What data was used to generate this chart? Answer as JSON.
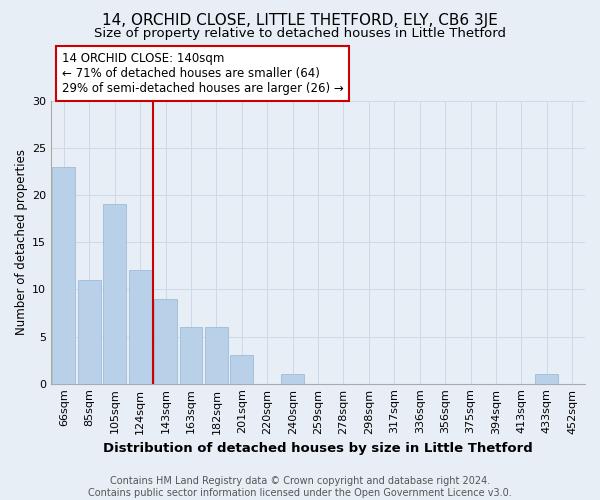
{
  "title": "14, ORCHID CLOSE, LITTLE THETFORD, ELY, CB6 3JE",
  "subtitle": "Size of property relative to detached houses in Little Thetford",
  "xlabel": "Distribution of detached houses by size in Little Thetford",
  "ylabel": "Number of detached properties",
  "bin_labels": [
    "66sqm",
    "85sqm",
    "105sqm",
    "124sqm",
    "143sqm",
    "163sqm",
    "182sqm",
    "201sqm",
    "220sqm",
    "240sqm",
    "259sqm",
    "278sqm",
    "298sqm",
    "317sqm",
    "336sqm",
    "356sqm",
    "375sqm",
    "394sqm",
    "413sqm",
    "433sqm",
    "452sqm"
  ],
  "bar_values": [
    23,
    11,
    19,
    12,
    9,
    6,
    6,
    3,
    0,
    1,
    0,
    0,
    0,
    0,
    0,
    0,
    0,
    0,
    0,
    1,
    0
  ],
  "bar_color": "#b8d0e8",
  "bar_edge_color": "#a0bcd8",
  "reference_line_index": 4,
  "ylim": [
    0,
    30
  ],
  "yticks": [
    0,
    5,
    10,
    15,
    20,
    25,
    30
  ],
  "annotation_title": "14 ORCHID CLOSE: 140sqm",
  "annotation_line1": "← 71% of detached houses are smaller (64)",
  "annotation_line2": "29% of semi-detached houses are larger (26) →",
  "footnote_line1": "Contains HM Land Registry data © Crown copyright and database right 2024.",
  "footnote_line2": "Contains public sector information licensed under the Open Government Licence v3.0.",
  "title_fontsize": 11,
  "subtitle_fontsize": 9.5,
  "xlabel_fontsize": 9.5,
  "ylabel_fontsize": 8.5,
  "tick_fontsize": 8,
  "footnote_fontsize": 7,
  "annotation_fontsize": 8.5,
  "annotation_box_color": "#ffffff",
  "annotation_border_color": "#cc0000",
  "vline_color": "#cc0000",
  "grid_color": "#cdd8e8",
  "background_color": "#e8eef5"
}
